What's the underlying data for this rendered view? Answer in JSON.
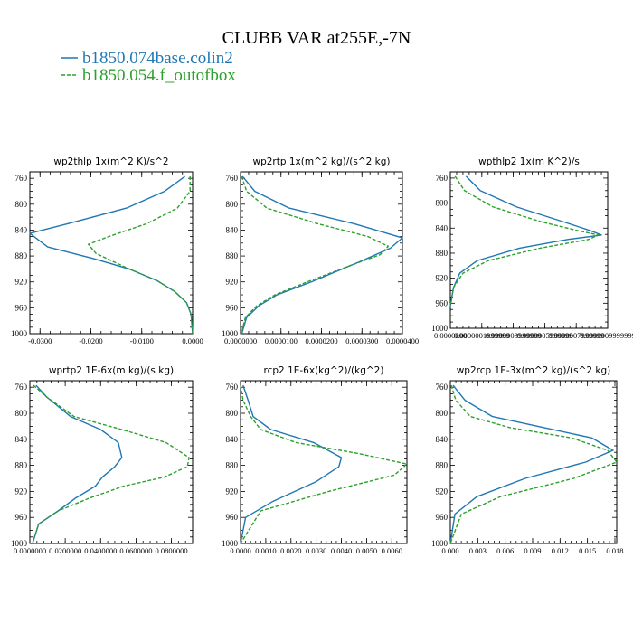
{
  "figure": {
    "title": "CLUBB VAR at255E,-7N",
    "legend": [
      {
        "label": "b1850.074base.colin2",
        "color": "#1f77b4",
        "dash": "solid"
      },
      {
        "label": "b1850.054.f_outofbox",
        "color": "#2ca02c",
        "dash": "dashed"
      }
    ]
  },
  "chart_data": [
    {
      "type": "line",
      "title": "wp2thlp  1x(m^2 K)/s^2",
      "ylim": [
        1000,
        750
      ],
      "yticks": [
        760,
        800,
        840,
        880,
        920,
        960,
        1000
      ],
      "xlim": [
        -0.032,
        0.0
      ],
      "xticks": [
        -0.03,
        -0.02,
        -0.01,
        0.0
      ],
      "xtick_labels": [
        "-0.0300",
        "-0.0200",
        "-0.0100",
        "0.0000"
      ],
      "series": [
        {
          "name": "b1850.074base.colin2",
          "color": "#1f77b4",
          "dash": "solid",
          "x": [
            -0.0015,
            -0.0055,
            -0.013,
            -0.0245,
            -0.032,
            -0.0285,
            -0.0195,
            -0.0125,
            -0.007,
            -0.0035,
            -0.0012,
            -0.0003,
            0.0
          ],
          "y": [
            757,
            780,
            806,
            830,
            845,
            866,
            884,
            900,
            918,
            935,
            952,
            970,
            1000
          ]
        },
        {
          "name": "b1850.054.f_outofbox",
          "color": "#2ca02c",
          "dash": "dashed",
          "x": [
            -0.0005,
            -0.0005,
            -0.003,
            -0.009,
            -0.0165,
            -0.0205,
            -0.019,
            -0.0125,
            -0.007,
            -0.0035,
            -0.0012,
            -0.0003,
            0.0
          ],
          "y": [
            757,
            780,
            806,
            830,
            850,
            862,
            876,
            900,
            918,
            935,
            952,
            970,
            1000
          ]
        }
      ]
    },
    {
      "type": "line",
      "title": "wp2rtp  1x(m^2 kg)/(s^2 kg)",
      "ylim": [
        1000,
        750
      ],
      "yticks": [
        760,
        800,
        840,
        880,
        920,
        960,
        1000
      ],
      "xlim": [
        0.0,
        4e-05
      ],
      "xticks": [
        0.0,
        1e-05,
        2e-05,
        3e-05,
        4e-05
      ],
      "xtick_labels": [
        "0.0000000",
        "0.0000100",
        "0.0000200",
        "0.0000300",
        "0.0000400"
      ],
      "series": [
        {
          "name": "b1850.074base.colin2",
          "color": "#1f77b4",
          "dash": "solid",
          "x": [
            5e-07,
            3.5e-06,
            1.2e-05,
            2.8e-05,
            4e-05,
            3.7e-05,
            2.9e-05,
            1.75e-05,
            9e-06,
            4.5e-06,
            1.5e-06,
            3e-07
          ],
          "y": [
            757,
            780,
            806,
            830,
            852,
            868,
            890,
            920,
            940,
            957,
            975,
            1000
          ]
        },
        {
          "name": "b1850.054.f_outofbox",
          "color": "#2ca02c",
          "dash": "dashed",
          "x": [
            3e-07,
            1.5e-06,
            6.5e-06,
            1.9e-05,
            3.15e-05,
            3.65e-05,
            3.45e-05,
            2.7e-05,
            1.65e-05,
            8.5e-06,
            4e-06,
            1.2e-06,
            2e-07
          ],
          "y": [
            757,
            780,
            806,
            830,
            850,
            865,
            878,
            895,
            920,
            940,
            957,
            975,
            1000
          ]
        }
      ]
    },
    {
      "type": "line",
      "title": "wpthlp2  1x(m K^2)/s",
      "ylim": [
        1000,
        750
      ],
      "yticks": [
        760,
        800,
        840,
        880,
        920,
        960,
        1000
      ],
      "xlim": [
        0.0,
        1e-06
      ],
      "xticks": [
        0.0,
        2e-07,
        4e-07,
        6e-07,
        8e-07,
        1e-06
      ],
      "xtick_labels": [
        "0.0000000",
        "0.0000001999999",
        "0.0000003999999",
        "0.0000005999999",
        "0.0000007999999",
        "0.0000009999999"
      ],
      "series": [
        {
          "name": "b1850.074base.colin2",
          "color": "#1f77b4",
          "dash": "solid",
          "x": [
            1e-07,
            1.9e-07,
            4.2e-07,
            7.2e-07,
            8.9e-07,
            9.6e-07,
            7.5e-07,
            4.4e-07,
            1.7e-07,
            6e-08,
            2e-08,
            0.0
          ],
          "y": [
            757,
            780,
            806,
            830,
            844,
            851,
            858,
            872,
            892,
            912,
            935,
            965
          ]
        },
        {
          "name": "b1850.054.f_outofbox",
          "color": "#2ca02c",
          "dash": "dashed",
          "x": [
            3e-08,
            9e-08,
            2.7e-07,
            5.8e-07,
            8.1e-07,
            9.4e-07,
            8.8e-07,
            5.7e-07,
            2.4e-07,
            8e-08,
            2e-08,
            0.0
          ],
          "y": [
            757,
            780,
            806,
            830,
            844,
            851,
            858,
            872,
            892,
            912,
            935,
            965
          ]
        }
      ]
    },
    {
      "type": "line",
      "title": "wprtp2  1E-6x(m kg)/(s kg)",
      "ylim": [
        1000,
        750
      ],
      "yticks": [
        760,
        800,
        840,
        880,
        920,
        960,
        1000
      ],
      "xlim": [
        0.0,
        0.092
      ],
      "xticks": [
        0.0,
        0.02,
        0.04,
        0.06,
        0.08
      ],
      "xtick_labels": [
        "0.0000000",
        "0.0200000",
        "0.0400000",
        "0.0600000",
        "0.0800000"
      ],
      "series": [
        {
          "name": "b1850.074base.colin2",
          "color": "#1f77b4",
          "dash": "solid",
          "x": [
            0.0035,
            0.0095,
            0.023,
            0.04,
            0.05,
            0.052,
            0.048,
            0.041,
            0.037,
            0.026,
            0.016,
            0.005,
            0.0015
          ],
          "y": [
            757,
            775,
            805,
            825,
            845,
            868,
            882,
            898,
            912,
            930,
            950,
            970,
            1000
          ]
        },
        {
          "name": "b1850.054.f_outofbox",
          "color": "#2ca02c",
          "dash": "dashed",
          "x": [
            0.002,
            0.0095,
            0.025,
            0.052,
            0.077,
            0.09,
            0.089,
            0.076,
            0.053,
            0.034,
            0.016,
            0.005,
            0.0015
          ],
          "y": [
            757,
            775,
            805,
            825,
            845,
            868,
            882,
            898,
            912,
            930,
            950,
            970,
            1000
          ]
        }
      ]
    },
    {
      "type": "line",
      "title": "rcp2  1E-6x(kg^2)/(kg^2)",
      "ylim": [
        1000,
        750
      ],
      "yticks": [
        760,
        800,
        840,
        880,
        920,
        960,
        1000
      ],
      "xlim": [
        0.0,
        0.0066
      ],
      "xticks": [
        0.0,
        0.001,
        0.002,
        0.003,
        0.004,
        0.005,
        0.006
      ],
      "xtick_labels": [
        "0.0000",
        "0.0010",
        "0.0020",
        "0.0030",
        "0.0040",
        "0.0050",
        "0.0060"
      ],
      "series": [
        {
          "name": "b1850.074base.colin2",
          "color": "#1f77b4",
          "dash": "solid",
          "x": [
            0.0001,
            0.0003,
            0.0005,
            0.0012,
            0.0029,
            0.004,
            0.0039,
            0.003,
            0.0013,
            0.0002,
            0.0
          ],
          "y": [
            757,
            780,
            805,
            825,
            845,
            868,
            882,
            905,
            935,
            960,
            1000
          ]
        },
        {
          "name": "b1850.054.f_outofbox",
          "color": "#2ca02c",
          "dash": "dashed",
          "x": [
            0.0,
            0.0001,
            0.0004,
            0.0008,
            0.0022,
            0.0047,
            0.0066,
            0.0061,
            0.0035,
            0.0008,
            0.0
          ],
          "y": [
            757,
            780,
            805,
            825,
            845,
            862,
            878,
            895,
            920,
            950,
            1000
          ]
        }
      ]
    },
    {
      "type": "line",
      "title": "wp2rcp  1E-3x(m^2 kg)/(s^2 kg)",
      "ylim": [
        1000,
        750
      ],
      "yticks": [
        760,
        800,
        840,
        880,
        920,
        960,
        1000
      ],
      "xlim": [
        0.0,
        0.0182
      ],
      "xticks": [
        0.0,
        0.003,
        0.006,
        0.009,
        0.012,
        0.015,
        0.018
      ],
      "xtick_labels": [
        "0.000",
        "0.003",
        "0.006",
        "0.009",
        "0.012",
        "0.015",
        "0.018"
      ],
      "series": [
        {
          "name": "b1850.074base.colin2",
          "color": "#1f77b4",
          "dash": "solid",
          "x": [
            0.0003,
            0.0016,
            0.0046,
            0.0102,
            0.0155,
            0.0178,
            0.0148,
            0.0082,
            0.0029,
            0.0005,
            0.0
          ],
          "y": [
            757,
            780,
            805,
            822,
            838,
            857,
            875,
            900,
            928,
            955,
            1000
          ]
        },
        {
          "name": "b1850.054.f_outofbox",
          "color": "#2ca02c",
          "dash": "dashed",
          "x": [
            0.0001,
            0.0006,
            0.0022,
            0.0065,
            0.0133,
            0.0172,
            0.0182,
            0.0135,
            0.0055,
            0.0012,
            0.0
          ],
          "y": [
            757,
            780,
            805,
            822,
            838,
            857,
            875,
            900,
            928,
            955,
            1000
          ]
        }
      ]
    }
  ]
}
